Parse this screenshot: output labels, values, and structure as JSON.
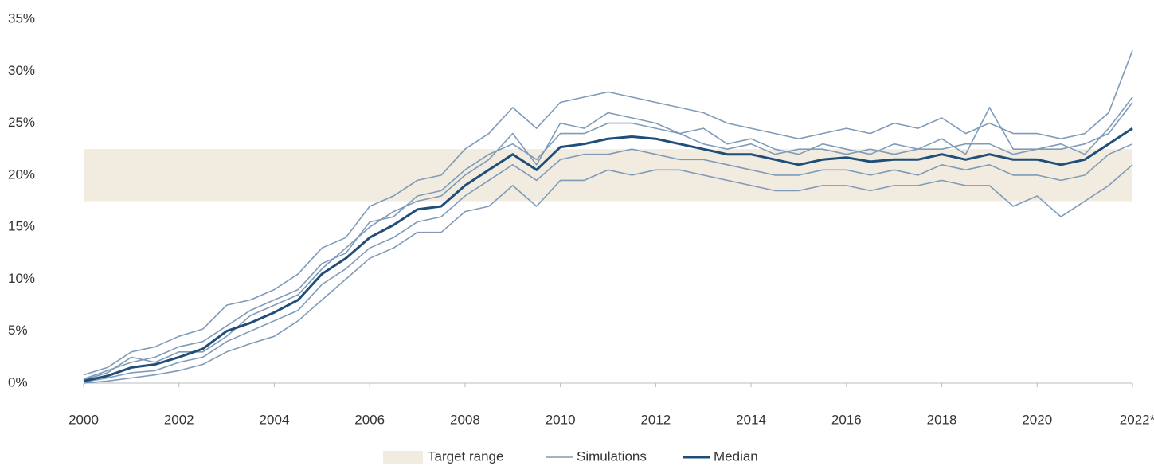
{
  "chart_data": {
    "type": "line",
    "x": [
      2000,
      2000.5,
      2001,
      2001.5,
      2002,
      2002.5,
      2003,
      2003.5,
      2004,
      2004.5,
      2005,
      2005.5,
      2006,
      2006.5,
      2007,
      2007.5,
      2008,
      2008.5,
      2009,
      2009.5,
      2010,
      2010.5,
      2011,
      2011.5,
      2012,
      2012.5,
      2013,
      2013.5,
      2014,
      2014.5,
      2015,
      2015.5,
      2016,
      2016.5,
      2017,
      2017.5,
      2018,
      2018.5,
      2019,
      2019.5,
      2020,
      2020.5,
      2021,
      2021.5,
      2022
    ],
    "xlim": [
      2000,
      2022
    ],
    "xticks": [
      2000,
      2002,
      2004,
      2006,
      2008,
      2010,
      2012,
      2014,
      2016,
      2018,
      2020,
      {
        "value": 2022,
        "label": "2022*"
      }
    ],
    "ylim": [
      0,
      35
    ],
    "yticks": [
      {
        "value": 0,
        "label": "0%"
      },
      {
        "value": 5,
        "label": "5%"
      },
      {
        "value": 10,
        "label": "10%"
      },
      {
        "value": 15,
        "label": "15%"
      },
      {
        "value": 20,
        "label": "20%"
      },
      {
        "value": 25,
        "label": "25%"
      },
      {
        "value": 30,
        "label": "30%"
      },
      {
        "value": 35,
        "label": "35%"
      }
    ],
    "bands": [
      {
        "name": "Target range",
        "color": "#f1ebe0",
        "range": [
          17.5,
          22.5
        ]
      }
    ],
    "series": [
      {
        "name": "Simulations",
        "color": "#7f9bb8",
        "runs": [
          [
            0.8,
            1.5,
            3.0,
            3.5,
            4.5,
            5.2,
            7.5,
            8.0,
            9.0,
            10.5,
            13.0,
            14.0,
            17.0,
            18.0,
            19.5,
            20.0,
            22.5,
            24.0,
            26.5,
            24.5,
            27.0,
            27.5,
            28.0,
            27.5,
            27.0,
            26.5,
            26.0,
            25.0,
            24.5,
            24.0,
            23.5,
            24.0,
            24.5,
            24.0,
            25.0,
            24.5,
            25.5,
            24.0,
            25.0,
            24.0,
            24.0,
            23.5,
            24.0,
            26.0,
            32.0
          ],
          [
            0.0,
            0.2,
            0.5,
            0.8,
            1.2,
            1.8,
            3.0,
            3.8,
            4.5,
            6.0,
            8.0,
            10.0,
            12.0,
            13.0,
            14.5,
            14.5,
            16.5,
            17.0,
            19.0,
            17.0,
            19.5,
            19.5,
            20.5,
            20.0,
            20.5,
            20.5,
            20.0,
            19.5,
            19.0,
            18.5,
            18.5,
            19.0,
            19.0,
            18.5,
            19.0,
            19.0,
            19.5,
            19.0,
            19.0,
            17.0,
            18.0,
            16.0,
            17.5,
            19.0,
            21.0
          ],
          [
            0.3,
            1.0,
            2.5,
            2.0,
            3.0,
            3.0,
            4.5,
            6.5,
            7.5,
            8.5,
            11.0,
            13.0,
            15.0,
            16.5,
            17.5,
            18.0,
            20.0,
            21.5,
            24.0,
            21.0,
            25.0,
            24.5,
            26.0,
            25.5,
            25.0,
            24.0,
            24.5,
            23.0,
            23.5,
            22.5,
            22.0,
            23.0,
            22.5,
            22.0,
            23.0,
            22.5,
            23.5,
            22.0,
            26.5,
            22.5,
            22.5,
            23.0,
            22.0,
            24.5,
            27.5
          ],
          [
            0.1,
            0.5,
            1.0,
            1.2,
            2.0,
            2.5,
            4.0,
            5.0,
            6.0,
            7.0,
            9.5,
            11.0,
            13.0,
            14.0,
            15.5,
            16.0,
            18.0,
            19.5,
            21.0,
            19.5,
            21.5,
            22.0,
            22.0,
            22.5,
            22.0,
            21.5,
            21.5,
            21.0,
            20.5,
            20.0,
            20.0,
            20.5,
            20.5,
            20.0,
            20.5,
            20.0,
            21.0,
            20.5,
            21.0,
            20.0,
            20.0,
            19.5,
            20.0,
            22.0,
            23.0
          ],
          [
            0.4,
            1.2,
            2.0,
            2.5,
            3.5,
            4.0,
            5.5,
            7.0,
            8.0,
            9.0,
            11.5,
            12.5,
            15.5,
            16.0,
            18.0,
            18.5,
            20.5,
            22.0,
            23.0,
            21.5,
            24.0,
            24.0,
            25.0,
            25.0,
            24.5,
            24.0,
            23.0,
            22.5,
            23.0,
            22.0,
            22.5,
            22.5,
            22.0,
            22.5,
            22.0,
            22.5,
            22.5,
            23.0,
            23.0,
            22.0,
            22.5,
            22.5,
            23.0,
            24.0,
            27.0
          ]
        ]
      },
      {
        "name": "Median",
        "color": "#1f4e79",
        "values": [
          0.2,
          0.7,
          1.5,
          1.8,
          2.5,
          3.3,
          5.0,
          5.8,
          6.8,
          8.0,
          10.5,
          12.0,
          14.0,
          15.2,
          16.7,
          17.0,
          19.0,
          20.5,
          22.0,
          20.5,
          22.7,
          23.0,
          23.5,
          23.7,
          23.5,
          23.0,
          22.5,
          22.0,
          22.0,
          21.5,
          21.0,
          21.5,
          21.7,
          21.3,
          21.5,
          21.5,
          22.0,
          21.5,
          22.0,
          21.5,
          21.5,
          21.0,
          21.5,
          23.0,
          24.5
        ]
      }
    ]
  }
}
